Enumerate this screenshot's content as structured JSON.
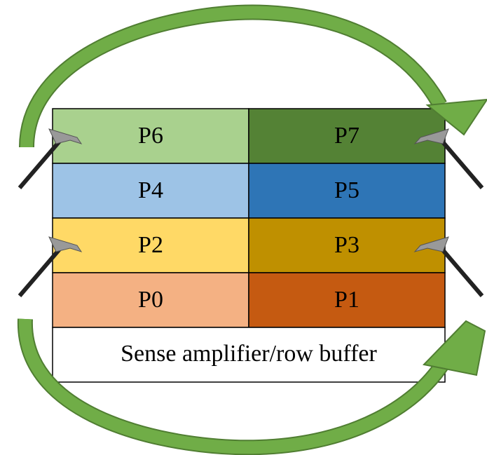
{
  "cells": [
    {
      "label": "P6",
      "color": "#a9d18e"
    },
    {
      "label": "P7",
      "color": "#548235"
    },
    {
      "label": "P4",
      "color": "#9dc3e6"
    },
    {
      "label": "P5",
      "color": "#2e75b6"
    },
    {
      "label": "P2",
      "color": "#ffd966"
    },
    {
      "label": "P3",
      "color": "#bf9000"
    },
    {
      "label": "P0",
      "color": "#f4b183"
    },
    {
      "label": "P1",
      "color": "#c55a11"
    }
  ],
  "buffer": {
    "label": "Sense amplifier/row buffer"
  }
}
